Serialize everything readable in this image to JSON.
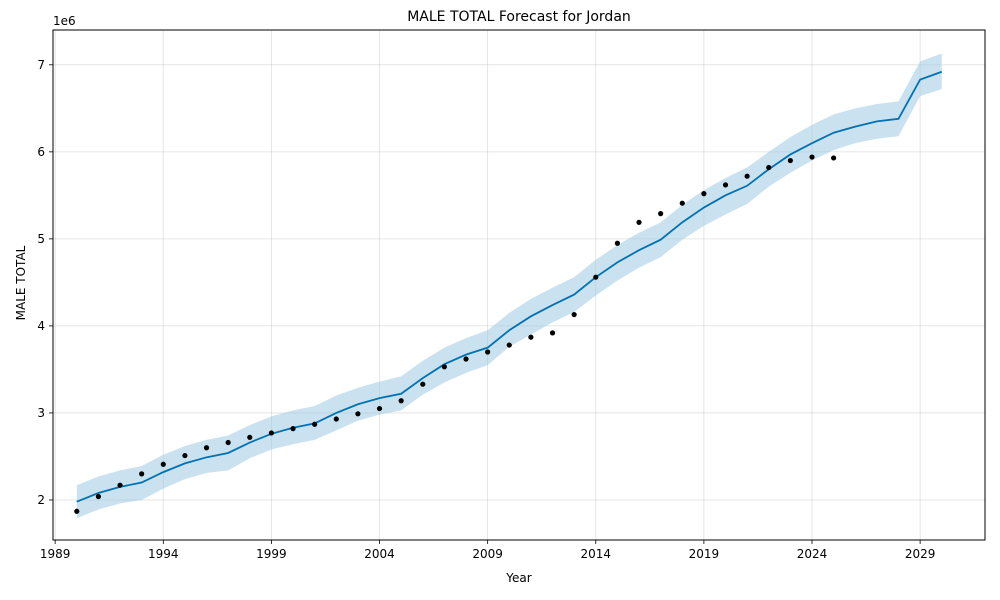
{
  "chart_data": {
    "type": "line",
    "title": "MALE TOTAL Forecast for Jordan",
    "xlabel": "Year",
    "ylabel": "MALE TOTAL",
    "y_offset_label": "1e6",
    "xlim": [
      1988.9,
      2032.0
    ],
    "ylim": [
      1540000,
      7400000
    ],
    "x_ticks": [
      1989,
      1994,
      1999,
      2004,
      2009,
      2014,
      2019,
      2024,
      2029
    ],
    "y_ticks": [
      2000000,
      3000000,
      4000000,
      5000000,
      6000000,
      7000000
    ],
    "y_tick_labels": [
      "2",
      "3",
      "4",
      "5",
      "6",
      "7"
    ],
    "grid": true,
    "colors": {
      "forecast": "#0072B2",
      "band": "#9ecae1",
      "observed": "#000000"
    },
    "series": [
      {
        "name": "",
        "kind": "observed",
        "x": [
          1990,
          1991,
          1992,
          1993,
          1994,
          1995,
          1996,
          1997,
          1998,
          1999,
          2000,
          2001,
          2002,
          2003,
          2004,
          2005,
          2006,
          2007,
          2008,
          2009,
          2010,
          2011,
          2012,
          2013,
          2014,
          2015,
          2016,
          2017,
          2018,
          2019,
          2020,
          2021,
          2022,
          2023,
          2024,
          2025
        ],
        "values": [
          1870000,
          2040000,
          2170000,
          2300000,
          2410000,
          2510000,
          2600000,
          2660000,
          2720000,
          2770000,
          2820000,
          2870000,
          2930000,
          2990000,
          3050000,
          3140000,
          3330000,
          3530000,
          3620000,
          3700000,
          3780000,
          3870000,
          3920000,
          4130000,
          4560000,
          4950000,
          5190000,
          5290000,
          5410000,
          5520000,
          5620000,
          5720000,
          5820000,
          5900000,
          5940000,
          5930000
        ]
      },
      {
        "name": "",
        "kind": "forecast",
        "x": [
          1990,
          1991,
          1992,
          1993,
          1994,
          1995,
          1996,
          1997,
          1998,
          1999,
          2000,
          2001,
          2002,
          2003,
          2004,
          2005,
          2006,
          2007,
          2008,
          2009,
          2010,
          2011,
          2012,
          2013,
          2014,
          2015,
          2016,
          2017,
          2018,
          2019,
          2020,
          2021,
          2022,
          2023,
          2024,
          2025,
          2026,
          2027,
          2028,
          2029,
          2030
        ],
        "values": [
          1980000,
          2080000,
          2150000,
          2200000,
          2320000,
          2420000,
          2490000,
          2540000,
          2660000,
          2760000,
          2830000,
          2880000,
          3000000,
          3100000,
          3170000,
          3220000,
          3400000,
          3560000,
          3670000,
          3750000,
          3950000,
          4110000,
          4240000,
          4360000,
          4560000,
          4730000,
          4870000,
          4990000,
          5190000,
          5360000,
          5500000,
          5610000,
          5800000,
          5970000,
          6100000,
          6220000,
          6290000,
          6350000,
          6380000,
          6830000,
          6920000
        ],
        "lower": [
          1790000,
          1890000,
          1960000,
          2000000,
          2130000,
          2240000,
          2310000,
          2340000,
          2480000,
          2580000,
          2640000,
          2690000,
          2800000,
          2910000,
          2980000,
          3030000,
          3210000,
          3350000,
          3460000,
          3550000,
          3760000,
          3900000,
          4040000,
          4160000,
          4350000,
          4520000,
          4670000,
          4790000,
          4990000,
          5150000,
          5280000,
          5400000,
          5600000,
          5760000,
          5900000,
          6020000,
          6100000,
          6150000,
          6180000,
          6640000,
          6720000
        ],
        "upper": [
          2170000,
          2270000,
          2340000,
          2390000,
          2520000,
          2620000,
          2690000,
          2740000,
          2860000,
          2960000,
          3030000,
          3080000,
          3200000,
          3290000,
          3360000,
          3420000,
          3600000,
          3750000,
          3860000,
          3950000,
          4150000,
          4310000,
          4440000,
          4560000,
          4760000,
          4930000,
          5070000,
          5190000,
          5390000,
          5560000,
          5700000,
          5820000,
          6000000,
          6170000,
          6310000,
          6430000,
          6500000,
          6550000,
          6580000,
          7040000,
          7130000
        ]
      }
    ]
  }
}
